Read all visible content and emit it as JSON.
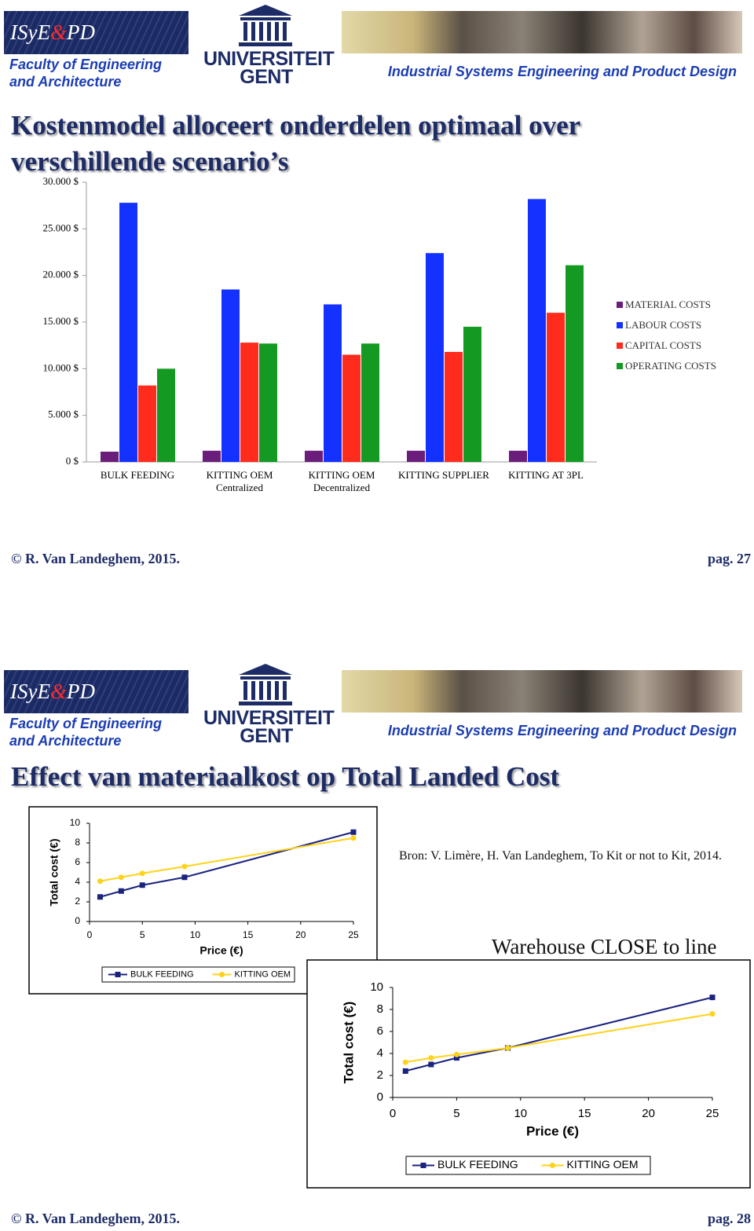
{
  "slides": [
    {
      "header": {
        "logo": [
          "ISyE",
          "&",
          "PD"
        ],
        "faculty": [
          "Faculty of Engineering",
          "and Architecture"
        ],
        "university": [
          "UNIVERSITEIT",
          "GENT"
        ],
        "department": "Industrial Systems Engineering and Product Design"
      },
      "title": "Kostenmodel alloceert onderdelen optimaal over verschillende scenario’s",
      "footer": {
        "author": "© R. Van Landeghem, 2015.",
        "page": "pag. 27"
      }
    },
    {
      "header": {
        "logo": [
          "ISyE",
          "&",
          "PD"
        ],
        "faculty": [
          "Faculty of Engineering",
          "and Architecture"
        ],
        "university": [
          "UNIVERSITEIT",
          "GENT"
        ],
        "department": "Industrial Systems Engineering and Product Design"
      },
      "title": "Effect van materiaalkost op Total Landed Cost",
      "source": "Bron: V. Limère, H. Van Landeghem, To Kit or not to Kit, 2014.",
      "caption": "Warehouse CLOSE to line",
      "footer": {
        "author": "© R. Van Landeghem, 2015.",
        "page": "pag. 28"
      }
    }
  ],
  "chart_data": [
    {
      "type": "bar",
      "categories": [
        "BULK FEEDING",
        "KITTING OEM\nCentralized",
        "KITTING OEM\nDecentralized",
        "KITTING SUPPLIER",
        "KITTING AT 3PL"
      ],
      "series": [
        {
          "name": "MATERIAL COSTS",
          "color": "#6b1d7c",
          "values": [
            1100,
            1200,
            1200,
            1200,
            1200
          ]
        },
        {
          "name": "LABOUR COSTS",
          "color": "#1432ff",
          "values": [
            27800,
            18500,
            16900,
            22400,
            28200
          ]
        },
        {
          "name": "CAPITAL COSTS",
          "color": "#ff2b1c",
          "values": [
            8200,
            12800,
            11500,
            11800,
            16000
          ]
        },
        {
          "name": "OPERATING COSTS",
          "color": "#149a22",
          "values": [
            10000,
            12700,
            12700,
            14500,
            21100
          ]
        }
      ],
      "ylim": [
        0,
        30000
      ],
      "yticks": [
        {
          "value": 0,
          "label": "0 $"
        },
        {
          "value": 5000,
          "label": "5.000 $"
        },
        {
          "value": 10000,
          "label": "10.000 $"
        },
        {
          "value": 15000,
          "label": "15.000 $"
        },
        {
          "value": 20000,
          "label": "20.000 $"
        },
        {
          "value": 25000,
          "label": "25.000 $"
        },
        {
          "value": 30000,
          "label": "30.000 $"
        }
      ],
      "grid": false,
      "legend": "right"
    },
    {
      "type": "line",
      "x_label": "Price (€)",
      "y_label": "Total cost (€)",
      "series": [
        {
          "name": "BULK FEEDING",
          "color": "#1a237e",
          "marker": "square",
          "x": [
            1,
            3,
            5,
            9,
            25
          ],
          "values": [
            2.5,
            3.1,
            3.7,
            4.5,
            9.1
          ]
        },
        {
          "name": "KITTING OEM",
          "color": "#ffd21a",
          "marker": "circle",
          "x": [
            1,
            3,
            5,
            9,
            25
          ],
          "values": [
            4.1,
            4.5,
            4.9,
            5.6,
            8.5
          ]
        }
      ],
      "xlim": [
        0,
        25
      ],
      "xticks": [
        0,
        5,
        10,
        15,
        20,
        25
      ],
      "ylim": [
        0,
        10
      ],
      "yticks": [
        0,
        2,
        4,
        6,
        8,
        10
      ],
      "grid": false,
      "legend": "bottom"
    },
    {
      "type": "line",
      "x_label": "Price (€)",
      "y_label": "Total cost (€)",
      "series": [
        {
          "name": "BULK FEEDING",
          "color": "#1a237e",
          "marker": "square",
          "x": [
            1,
            3,
            5,
            9,
            25
          ],
          "values": [
            2.4,
            3.0,
            3.6,
            4.5,
            9.1
          ]
        },
        {
          "name": "KITTING OEM",
          "color": "#ffd21a",
          "marker": "circle",
          "x": [
            1,
            3,
            5,
            9,
            25
          ],
          "values": [
            3.2,
            3.6,
            3.9,
            4.5,
            7.6
          ]
        }
      ],
      "xlim": [
        0,
        25
      ],
      "xticks": [
        0,
        5,
        10,
        15,
        20,
        25
      ],
      "ylim": [
        0,
        10
      ],
      "yticks": [
        0,
        2,
        4,
        6,
        8,
        10
      ],
      "grid": false,
      "legend": "bottom"
    }
  ]
}
